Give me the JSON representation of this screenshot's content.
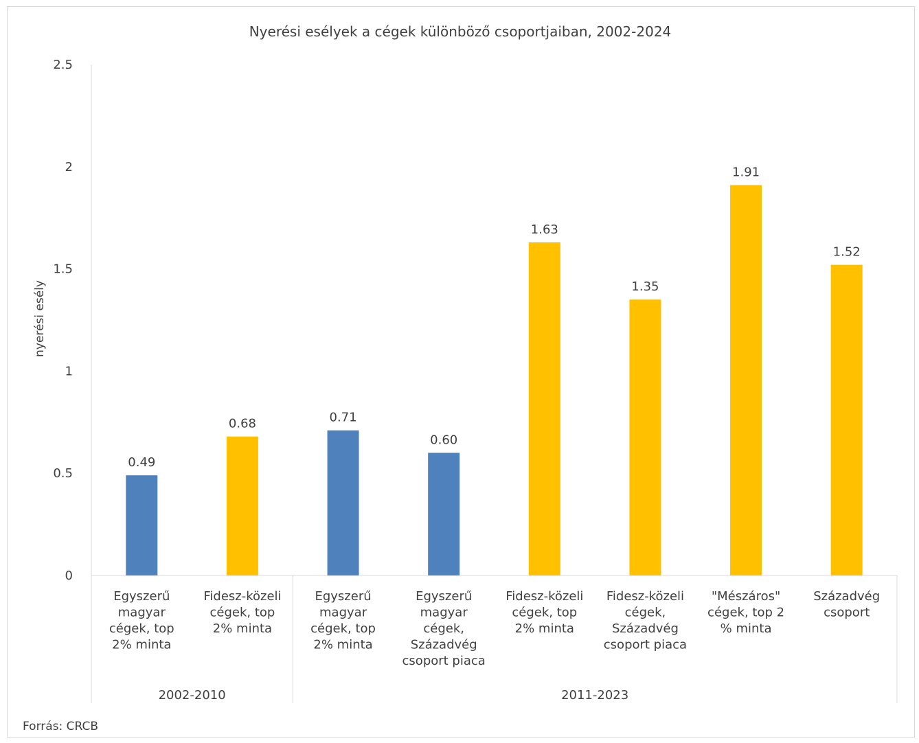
{
  "chart_data": {
    "type": "bar",
    "title": "Nyerési esélyek a cégek különböző csoportjaiban, 2002-2024",
    "ylabel": "nyerési esély",
    "ylim": [
      0,
      2.5
    ],
    "yticks": [
      "0",
      "0.5",
      "1",
      "1.5",
      "2",
      "2.5"
    ],
    "groups": [
      {
        "label": "2002-2010",
        "count": 2
      },
      {
        "label": "2011-2023",
        "count": 6
      }
    ],
    "categories": [
      [
        "Egyszerű",
        "magyar",
        "cégek, top",
        "2% minta"
      ],
      [
        "Fidesz-közeli",
        "cégek, top",
        "2% minta"
      ],
      [
        "Egyszerű",
        "magyar",
        "cégek, top",
        "2% minta"
      ],
      [
        "Egyszerű",
        "magyar",
        "cégek,",
        "Századvég",
        "csoport piaca"
      ],
      [
        "Fidesz-közeli",
        "cégek, top",
        "2% minta"
      ],
      [
        "Fidesz-közeli",
        "cégek,",
        "Századvég",
        "csoport piaca"
      ],
      [
        "\"Mészáros\"",
        "cégek, top 2",
        "% minta"
      ],
      [
        "Századvég",
        "csoport"
      ]
    ],
    "values": [
      0.49,
      0.68,
      0.71,
      0.6,
      1.63,
      1.35,
      1.91,
      1.52
    ],
    "value_labels": [
      "0.49",
      "0.68",
      "0.71",
      "0.60",
      "1.63",
      "1.35",
      "1.91",
      "1.52"
    ],
    "bar_colors": [
      "#4f81bd",
      "#ffc000",
      "#4f81bd",
      "#4f81bd",
      "#ffc000",
      "#ffc000",
      "#ffc000",
      "#ffc000"
    ],
    "gridlines": false,
    "legend": "none"
  },
  "source_note": "Forrás: CRCB"
}
